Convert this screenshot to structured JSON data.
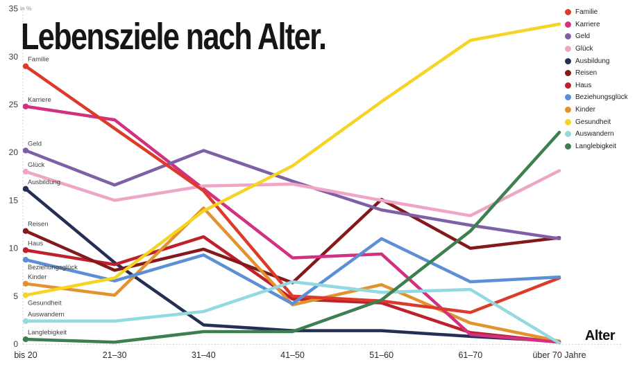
{
  "header": {
    "title": "Lebensziele nach Alter.",
    "unit_label": "in %",
    "x_axis_title": "Alter"
  },
  "chart_data": {
    "type": "line",
    "title": "Lebensziele nach Alter.",
    "unit_label": "in %",
    "xlabel": "Alter",
    "ylabel": "in %",
    "x_categories": [
      "bis 20",
      "21–30",
      "31–40",
      "41–50",
      "51–60",
      "61–70",
      "über 70 Jahre"
    ],
    "y_ticks": [
      0,
      5,
      10,
      15,
      20,
      25,
      30,
      35
    ],
    "ylim": [
      0,
      35
    ],
    "grid": false,
    "legend_position": "top-right",
    "axis_line_color": "#c4c4c4",
    "series": [
      {
        "name": "Familie",
        "color": "#dc3b2b",
        "label_side": "above",
        "values": [
          29.0,
          22.5,
          16.0,
          5.0,
          4.5,
          3.3,
          6.9
        ]
      },
      {
        "name": "Karriere",
        "color": "#d23080",
        "label_side": "above",
        "values": [
          24.8,
          23.4,
          16.2,
          9.0,
          9.4,
          1.0,
          0.2
        ]
      },
      {
        "name": "Geld",
        "color": "#7f60a6",
        "label_side": "above",
        "values": [
          20.2,
          16.6,
          20.2,
          17.0,
          14.0,
          12.4,
          11.0
        ]
      },
      {
        "name": "Glück",
        "color": "#efa5c6",
        "label_side": "above",
        "values": [
          18.0,
          15.0,
          16.5,
          16.7,
          15.0,
          13.4,
          18.1
        ]
      },
      {
        "name": "Ausbildung",
        "color": "#252e55",
        "label_side": "above",
        "values": [
          16.2,
          8.5,
          2.0,
          1.4,
          1.4,
          0.8,
          0.3
        ]
      },
      {
        "name": "Reisen",
        "color": "#84191c",
        "label_side": "above",
        "values": [
          11.8,
          7.7,
          9.9,
          6.4,
          15.1,
          10.0,
          11.1
        ]
      },
      {
        "name": "Haus",
        "color": "#bf202d",
        "label_side": "above",
        "values": [
          9.8,
          8.3,
          11.2,
          4.7,
          4.3,
          1.2,
          0.2
        ]
      },
      {
        "name": "Beziehungsglück",
        "color": "#5c8fd5",
        "label_side": "below",
        "values": [
          8.8,
          6.6,
          9.3,
          4.2,
          11.0,
          6.5,
          7.0
        ]
      },
      {
        "name": "Kinder",
        "color": "#e2922f",
        "label_side": "above",
        "values": [
          6.3,
          5.1,
          14.2,
          4.1,
          6.2,
          2.2,
          0.3
        ]
      },
      {
        "name": "Gesundheit",
        "color": "#f6d424",
        "label_side": "below",
        "values": [
          5.1,
          6.9,
          13.9,
          18.6,
          25.3,
          31.7,
          33.4
        ]
      },
      {
        "name": "Auswandern",
        "color": "#92d9e1",
        "label_side": "above",
        "values": [
          2.4,
          2.4,
          3.4,
          6.5,
          5.4,
          5.7,
          0.1
        ]
      },
      {
        "name": "Langlebigkeit",
        "color": "#3d7f51",
        "label_side": "above",
        "values": [
          0.5,
          0.2,
          1.3,
          1.3,
          4.6,
          11.8,
          22.1
        ]
      }
    ],
    "z_order": [
      "Ausbildung",
      "Haus",
      "Reisen",
      "Kinder",
      "Karriere",
      "Geld",
      "Glück",
      "Familie",
      "Beziehungsglück",
      "Auswandern",
      "Gesundheit",
      "Langlebigkeit"
    ]
  }
}
